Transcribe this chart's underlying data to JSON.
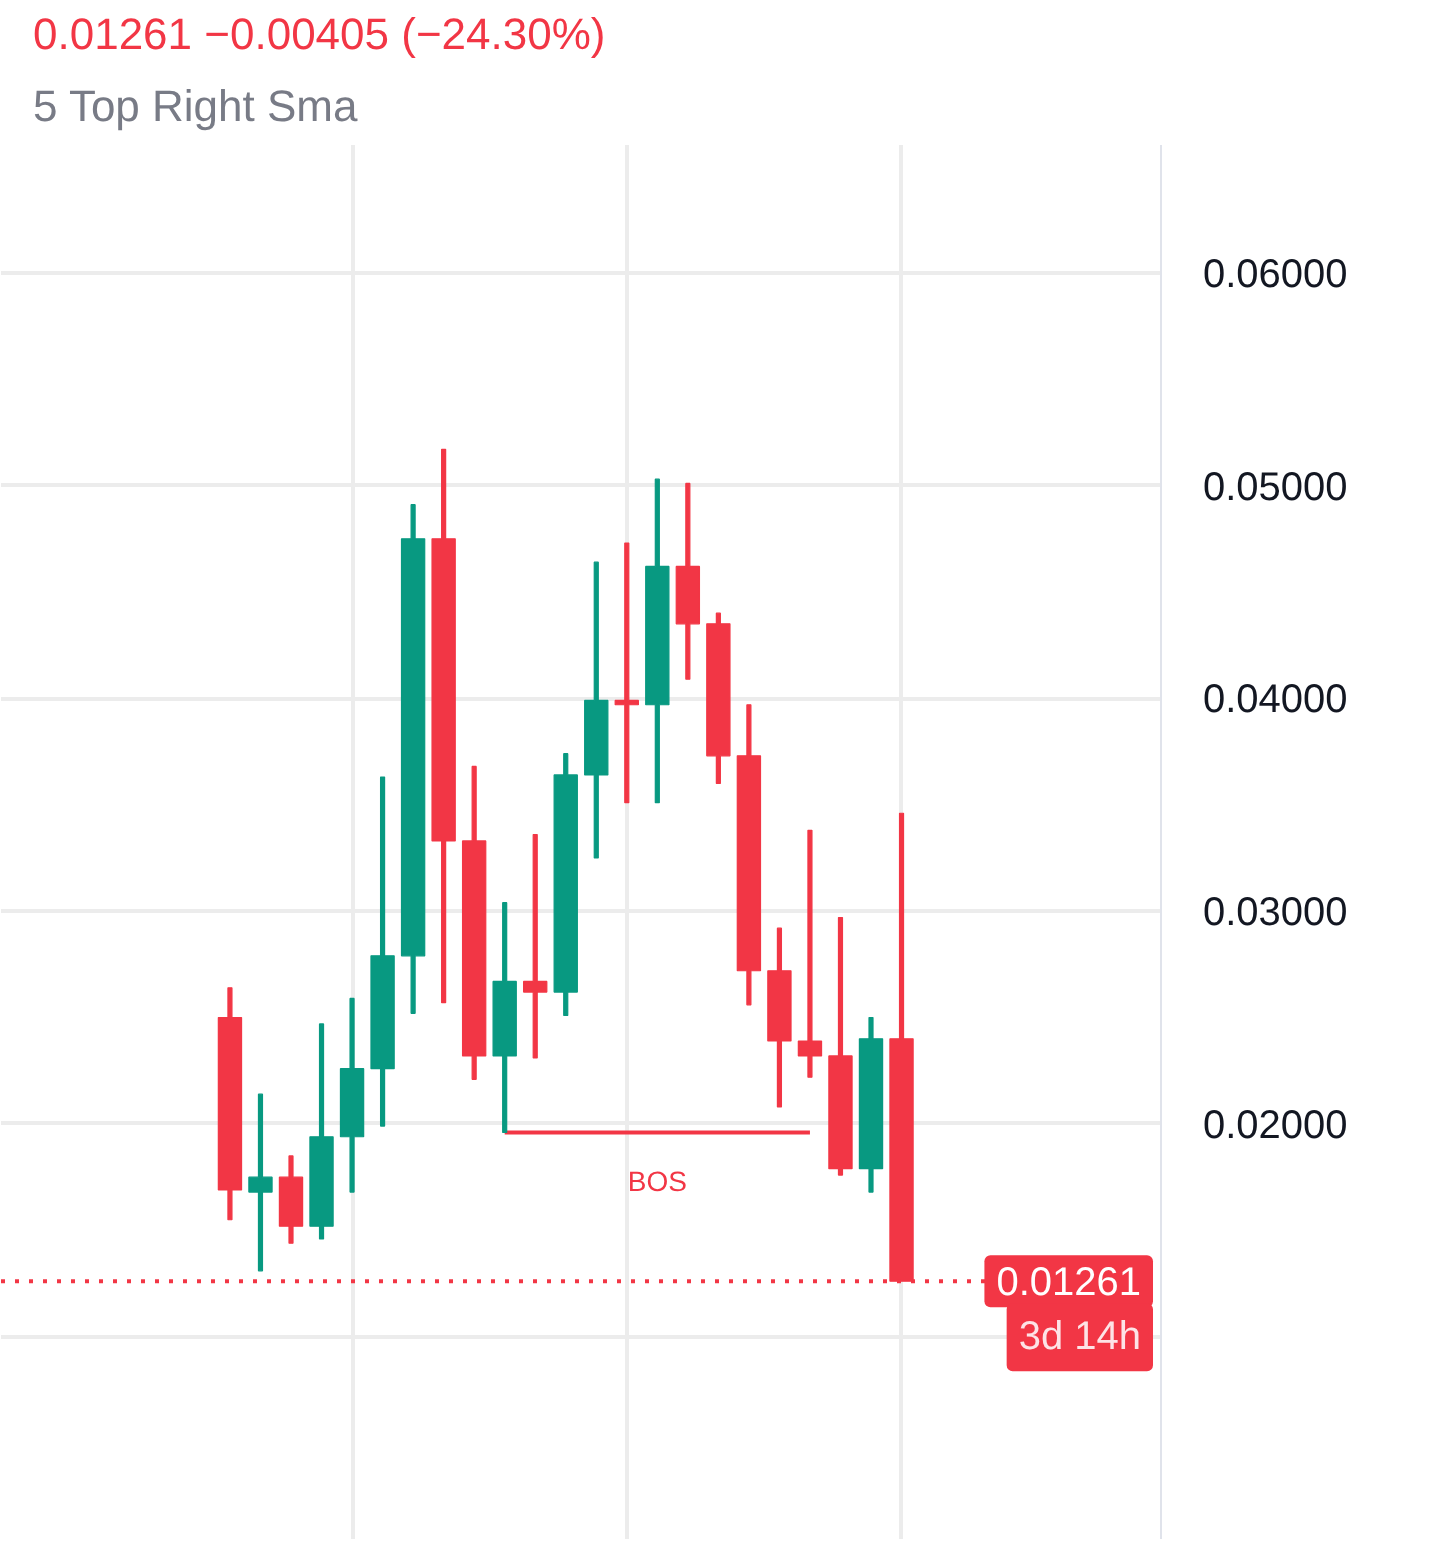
{
  "chart_data": {
    "type": "candlestick",
    "subtitle": "0.01261  −0.00405 (−24.30%)",
    "annotations": [
      "5 Top Right Sma",
      {
        "text": "3d 14h",
        "y": 0.01261
      }
    ],
    "categories": [
      null,
      null,
      null,
      null,
      null,
      null,
      null,
      null,
      null,
      null,
      null,
      null,
      null,
      null,
      null,
      null,
      null,
      null,
      null,
      null,
      null,
      null,
      null,
      null,
      null,
      null,
      null,
      null,
      null,
      null,
      null,
      null,
      null,
      null,
      null,
      null,
      null,
      null
    ],
    "ohlc": [
      null,
      null,
      null,
      null,
      null,
      null,
      null,
      [
        0.025,
        0.0264,
        0.0155,
        0.0169
      ],
      [
        0.0168,
        0.0214,
        0.0131,
        0.0175
      ],
      [
        0.0175,
        0.0185,
        0.0144,
        0.0152
      ],
      [
        0.0152,
        0.0247,
        0.0146,
        0.0194
      ],
      [
        0.0194,
        0.0259,
        0.0168,
        0.0226
      ],
      [
        0.0226,
        0.0363,
        0.0199,
        0.0279
      ],
      [
        0.0279,
        0.0491,
        0.0252,
        0.0475
      ],
      [
        0.0475,
        0.0517,
        0.0257,
        0.0333
      ],
      [
        0.0333,
        0.0368,
        0.0221,
        0.0232
      ],
      [
        0.0232,
        0.0304,
        0.0196,
        0.0267
      ],
      [
        0.0267,
        0.0336,
        0.0231,
        0.0262
      ],
      [
        0.0262,
        0.0374,
        0.0251,
        0.0364
      ],
      [
        0.0364,
        0.0464,
        0.0325,
        0.0399
      ],
      [
        0.0399,
        0.0473,
        0.0351,
        0.0397
      ],
      [
        0.0397,
        0.0503,
        0.0351,
        0.0462
      ],
      [
        0.0462,
        0.0501,
        0.0409,
        0.0435
      ],
      [
        0.0435,
        0.044,
        0.036,
        0.0373
      ],
      [
        0.0373,
        0.0397,
        0.0256,
        0.0272
      ],
      [
        0.0272,
        0.0292,
        0.0208,
        0.0239
      ],
      [
        0.0239,
        0.0338,
        0.0222,
        0.0232
      ],
      [
        0.0232,
        0.0297,
        0.0176,
        0.0179
      ],
      [
        0.0179,
        0.025,
        0.0168,
        0.024
      ],
      [
        0.024,
        0.0346,
        0.01261,
        0.01261
      ],
      null,
      null,
      null,
      null,
      null,
      null,
      null,
      null
    ],
    "colors": [
      null,
      null,
      null,
      null,
      null,
      null,
      null,
      "#f23645",
      "#089981",
      "#f23645",
      "#089981",
      "#089981",
      "#089981",
      "#089981",
      "#f23645",
      "#f23645",
      "#089981",
      "#f23645",
      "#089981",
      "#089981",
      "#f23645",
      "#089981",
      "#f23645",
      "#f23645",
      "#f23645",
      "#f23645",
      "#f23645",
      "#f23645",
      "#089981",
      "#f23645",
      null,
      null,
      null,
      null,
      null,
      null,
      null,
      null
    ],
    "series": [
      {
        "type": "line",
        "name": "BOS",
        "color": "#f23645",
        "values": [
          null,
          null,
          null,
          null,
          null,
          null,
          null,
          null,
          null,
          null,
          null,
          null,
          null,
          null,
          null,
          null,
          0.0196,
          0.0196,
          0.0196,
          0.0196,
          0.0196,
          0.0196,
          0.0196,
          0.0196,
          0.0196,
          0.0196,
          0.0196,
          null,
          null,
          null,
          null,
          null,
          null,
          null,
          null,
          null,
          null,
          null
        ]
      }
    ],
    "ref_lines": [
      {
        "axis": "y",
        "value": 0.01261,
        "label": "0.01261",
        "color": "#f23645",
        "line_style": "dotted"
      }
    ],
    "ylim": [
      0.0005,
      0.066
    ],
    "yticks": [
      {
        "value": 0.01,
        "label": null
      },
      {
        "value": 0.02,
        "label": "0.02000"
      },
      {
        "value": 0.03,
        "label": "0.03000"
      },
      {
        "value": 0.04,
        "label": "0.04000"
      },
      {
        "value": 0.05,
        "label": "0.05000"
      },
      {
        "value": 0.06,
        "label": "0.06000"
      }
    ],
    "grid": true,
    "tick_labels": "y"
  }
}
